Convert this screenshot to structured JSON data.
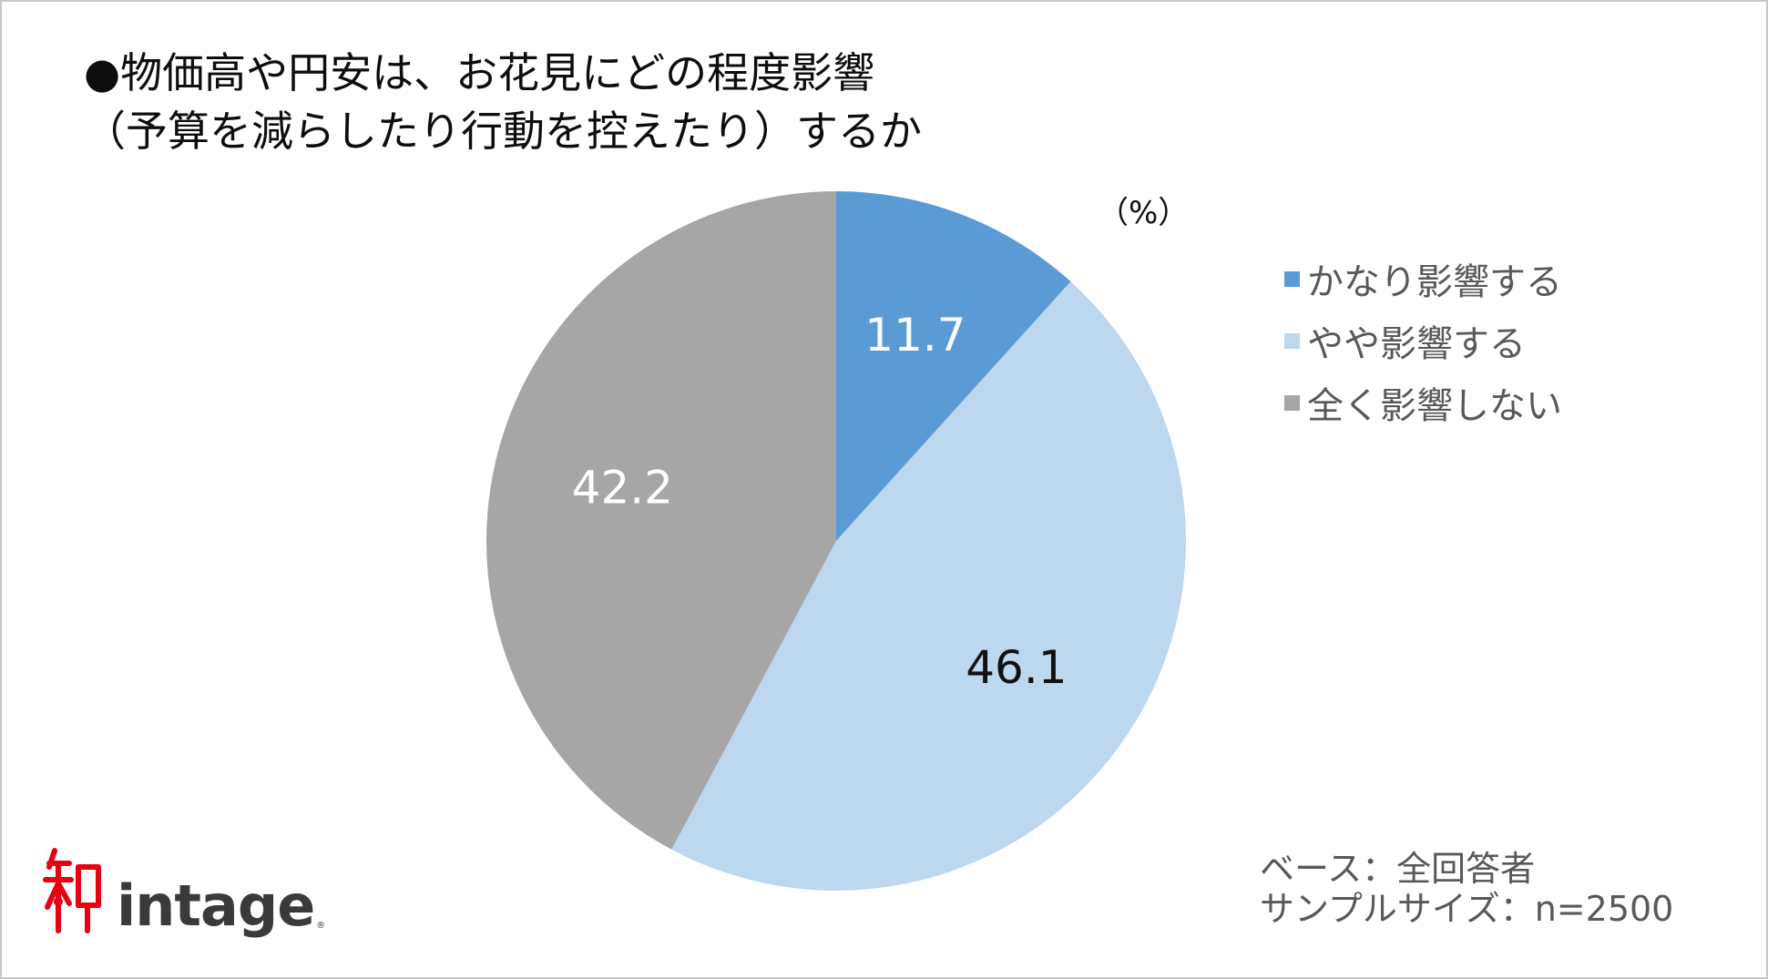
{
  "title": {
    "line1": "●物価高や円安は、お花見にどの程度影響",
    "line2": "（予算を減らしたり行動を控えたり）するか"
  },
  "chart_data": {
    "type": "pie",
    "unit_label": "（%）",
    "categories": [
      "かなり影響する",
      "やや影響する",
      "全く影響しない"
    ],
    "values": [
      11.7,
      46.1,
      42.2
    ],
    "value_labels": [
      "11.7",
      "46.1",
      "42.2"
    ],
    "colors": [
      "#5b9bd5",
      "#bdd7ee",
      "#a6a6a6"
    ],
    "label_colors": [
      "#ffffff",
      "#111111",
      "#ffffff"
    ],
    "start": "12 o'clock, clockwise",
    "legend_position": "right"
  },
  "footnote": {
    "base": "ベース：全回答者",
    "sample": "サンプルサイズ：n=2500"
  },
  "logo": {
    "text": "intage",
    "mark_color": "#e60012",
    "icon": "intage-logo-mark"
  }
}
